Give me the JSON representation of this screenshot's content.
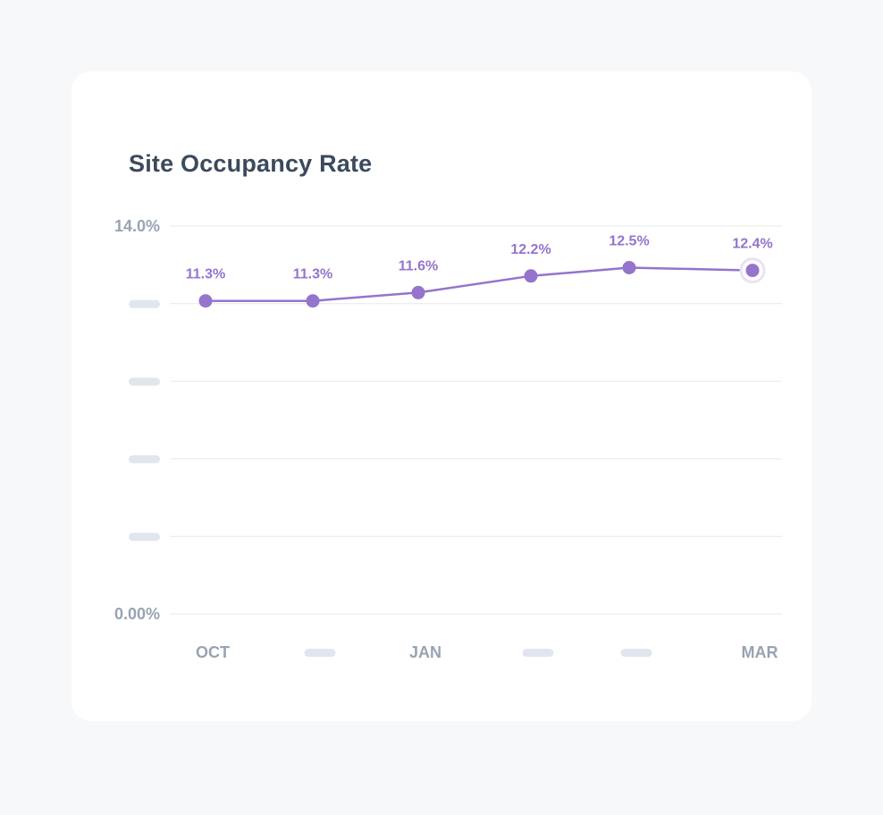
{
  "chart_data": {
    "type": "line",
    "title": "Site Occupancy Rate",
    "categories": [
      "OCT",
      "",
      "JAN",
      "",
      "",
      "MAR"
    ],
    "series": [
      {
        "name": "Occupancy Rate",
        "values": [
          11.3,
          11.3,
          11.6,
          12.2,
          12.5,
          12.4
        ],
        "labels": [
          "11.3%",
          "11.3%",
          "11.6%",
          "12.2%",
          "12.5%",
          "12.4%"
        ]
      }
    ],
    "y_tick_labels": [
      "0.00%",
      "",
      "",
      "",
      "",
      "14.0%"
    ],
    "ylim": [
      0,
      14
    ],
    "xlabel": "",
    "ylabel": "",
    "grid": true,
    "highlighted_index": 5,
    "colors": {
      "line": "#9474cc",
      "marker": "#9474cc",
      "highlight_ring": "#e9e2f5",
      "grid": "#e6e9ee",
      "placeholder": "#e1e6ee"
    }
  }
}
